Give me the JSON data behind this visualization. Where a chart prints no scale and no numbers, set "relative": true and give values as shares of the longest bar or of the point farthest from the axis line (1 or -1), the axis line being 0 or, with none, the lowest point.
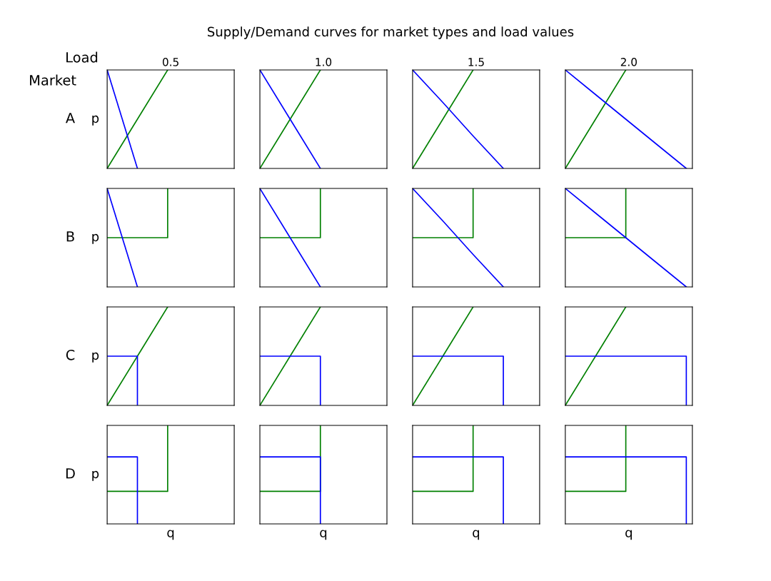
{
  "chart_data": [
    {
      "type": "line",
      "relative": true,
      "categories": [
        null,
        null,
        null,
        null,
        null
      ],
      "title": "0.5",
      "ylabel": "p",
      "annotations": [
        "Supply/Demand curves for market types and load values",
        "Load",
        "Market",
        "A"
      ],
      "series": [
        {
          "color": "#008000",
          "values": [
            0,
            0.5,
            1,
            null,
            null
          ]
        },
        {
          "color": "#0000ff",
          "values": [
            1,
            0,
            null,
            null,
            null
          ]
        }
      ]
    },
    {
      "type": "line",
      "relative": true,
      "categories": [
        null,
        null,
        null,
        null,
        null
      ],
      "title": "1.0",
      "series": [
        {
          "color": "#008000",
          "values": [
            0,
            0.5,
            1,
            null,
            null
          ]
        },
        {
          "color": "#0000ff",
          "values": [
            1,
            0.5,
            0,
            null,
            null
          ]
        }
      ]
    },
    {
      "type": "line",
      "relative": true,
      "categories": [
        null,
        null,
        null,
        null,
        null
      ],
      "title": "1.5",
      "series": [
        {
          "color": "#008000",
          "values": [
            0,
            0.5,
            1,
            null,
            null
          ]
        },
        {
          "color": "#0000ff",
          "values": [
            1,
            0.67,
            0.33,
            0,
            null
          ]
        }
      ]
    },
    {
      "type": "line",
      "relative": true,
      "categories": [
        null,
        null,
        null,
        null,
        null
      ],
      "title": "2.0",
      "series": [
        {
          "color": "#008000",
          "values": [
            0,
            0.5,
            1,
            null,
            null
          ]
        },
        {
          "color": "#0000ff",
          "values": [
            1,
            0.75,
            0.5,
            0.25,
            0
          ]
        }
      ]
    },
    {
      "type": "line",
      "relative": true,
      "categories": [
        null,
        null,
        null,
        null,
        null
      ],
      "ylabel": "p",
      "annotations": [
        "B"
      ],
      "series": [
        {
          "type": "step",
          "color": "#008000",
          "values": [
            0.5,
            0.5,
            1,
            null,
            null
          ]
        },
        {
          "color": "#0000ff",
          "values": [
            1,
            0,
            null,
            null,
            null
          ]
        }
      ]
    },
    {
      "type": "line",
      "relative": true,
      "categories": [
        null,
        null,
        null,
        null,
        null
      ],
      "series": [
        {
          "type": "step",
          "color": "#008000",
          "values": [
            0.5,
            0.5,
            1,
            null,
            null
          ]
        },
        {
          "color": "#0000ff",
          "values": [
            1,
            0.5,
            0,
            null,
            null
          ]
        }
      ]
    },
    {
      "type": "line",
      "relative": true,
      "categories": [
        null,
        null,
        null,
        null,
        null
      ],
      "series": [
        {
          "type": "step",
          "color": "#008000",
          "values": [
            0.5,
            0.5,
            1,
            null,
            null
          ]
        },
        {
          "color": "#0000ff",
          "values": [
            1,
            0.67,
            0.33,
            0,
            null
          ]
        }
      ]
    },
    {
      "type": "line",
      "relative": true,
      "categories": [
        null,
        null,
        null,
        null,
        null
      ],
      "series": [
        {
          "type": "step",
          "color": "#008000",
          "values": [
            0.5,
            0.5,
            1,
            null,
            null
          ]
        },
        {
          "color": "#0000ff",
          "values": [
            1,
            0.75,
            0.5,
            0.25,
            0
          ]
        }
      ]
    },
    {
      "type": "line",
      "relative": true,
      "categories": [
        null,
        null,
        null,
        null,
        null
      ],
      "ylabel": "p",
      "annotations": [
        "C"
      ],
      "series": [
        {
          "color": "#008000",
          "values": [
            0,
            0.5,
            1,
            null,
            null
          ]
        },
        {
          "type": "step",
          "color": "#0000ff",
          "values": [
            0.5,
            0,
            null,
            null,
            null
          ]
        }
      ]
    },
    {
      "type": "line",
      "relative": true,
      "categories": [
        null,
        null,
        null,
        null,
        null
      ],
      "series": [
        {
          "color": "#008000",
          "values": [
            0,
            0.5,
            1,
            null,
            null
          ]
        },
        {
          "type": "step",
          "color": "#0000ff",
          "values": [
            0.5,
            0.5,
            0,
            null,
            null
          ]
        }
      ]
    },
    {
      "type": "line",
      "relative": true,
      "categories": [
        null,
        null,
        null,
        null,
        null
      ],
      "series": [
        {
          "color": "#008000",
          "values": [
            0,
            0.5,
            1,
            null,
            null
          ]
        },
        {
          "type": "step",
          "color": "#0000ff",
          "values": [
            0.5,
            0.5,
            0.5,
            0,
            null
          ]
        }
      ]
    },
    {
      "type": "line",
      "relative": true,
      "categories": [
        null,
        null,
        null,
        null,
        null
      ],
      "series": [
        {
          "color": "#008000",
          "values": [
            0,
            0.5,
            1,
            null,
            null
          ]
        },
        {
          "type": "step",
          "color": "#0000ff",
          "values": [
            0.5,
            0.5,
            0.5,
            0.5,
            0
          ]
        }
      ]
    },
    {
      "type": "step",
      "relative": true,
      "categories": [
        null,
        null,
        null,
        null,
        null
      ],
      "ylabel": "p",
      "xlabel": "q",
      "annotations": [
        "D"
      ],
      "series": [
        {
          "color": "#008000",
          "values": [
            0.33,
            0.33,
            1,
            null,
            null
          ]
        },
        {
          "color": "#0000ff",
          "values": [
            0.68,
            0,
            null,
            null,
            null
          ]
        }
      ]
    },
    {
      "type": "step",
      "relative": true,
      "categories": [
        null,
        null,
        null,
        null,
        null
      ],
      "xlabel": "q",
      "series": [
        {
          "color": "#008000",
          "values": [
            0.33,
            0.33,
            1,
            null,
            null
          ]
        },
        {
          "color": "#0000ff",
          "values": [
            0.68,
            0.68,
            0,
            null,
            null
          ]
        }
      ]
    },
    {
      "type": "step",
      "relative": true,
      "categories": [
        null,
        null,
        null,
        null,
        null
      ],
      "xlabel": "q",
      "series": [
        {
          "color": "#008000",
          "values": [
            0.33,
            0.33,
            1,
            null,
            null
          ]
        },
        {
          "color": "#0000ff",
          "values": [
            0.68,
            0.68,
            0.68,
            0,
            null
          ]
        }
      ]
    },
    {
      "type": "step",
      "relative": true,
      "categories": [
        null,
        null,
        null,
        null,
        null
      ],
      "xlabel": "q",
      "series": [
        {
          "color": "#008000",
          "values": [
            0.33,
            0.33,
            1,
            null,
            null
          ]
        },
        {
          "color": "#0000ff",
          "values": [
            0.68,
            0.68,
            0.68,
            0.68,
            0
          ]
        }
      ]
    }
  ]
}
